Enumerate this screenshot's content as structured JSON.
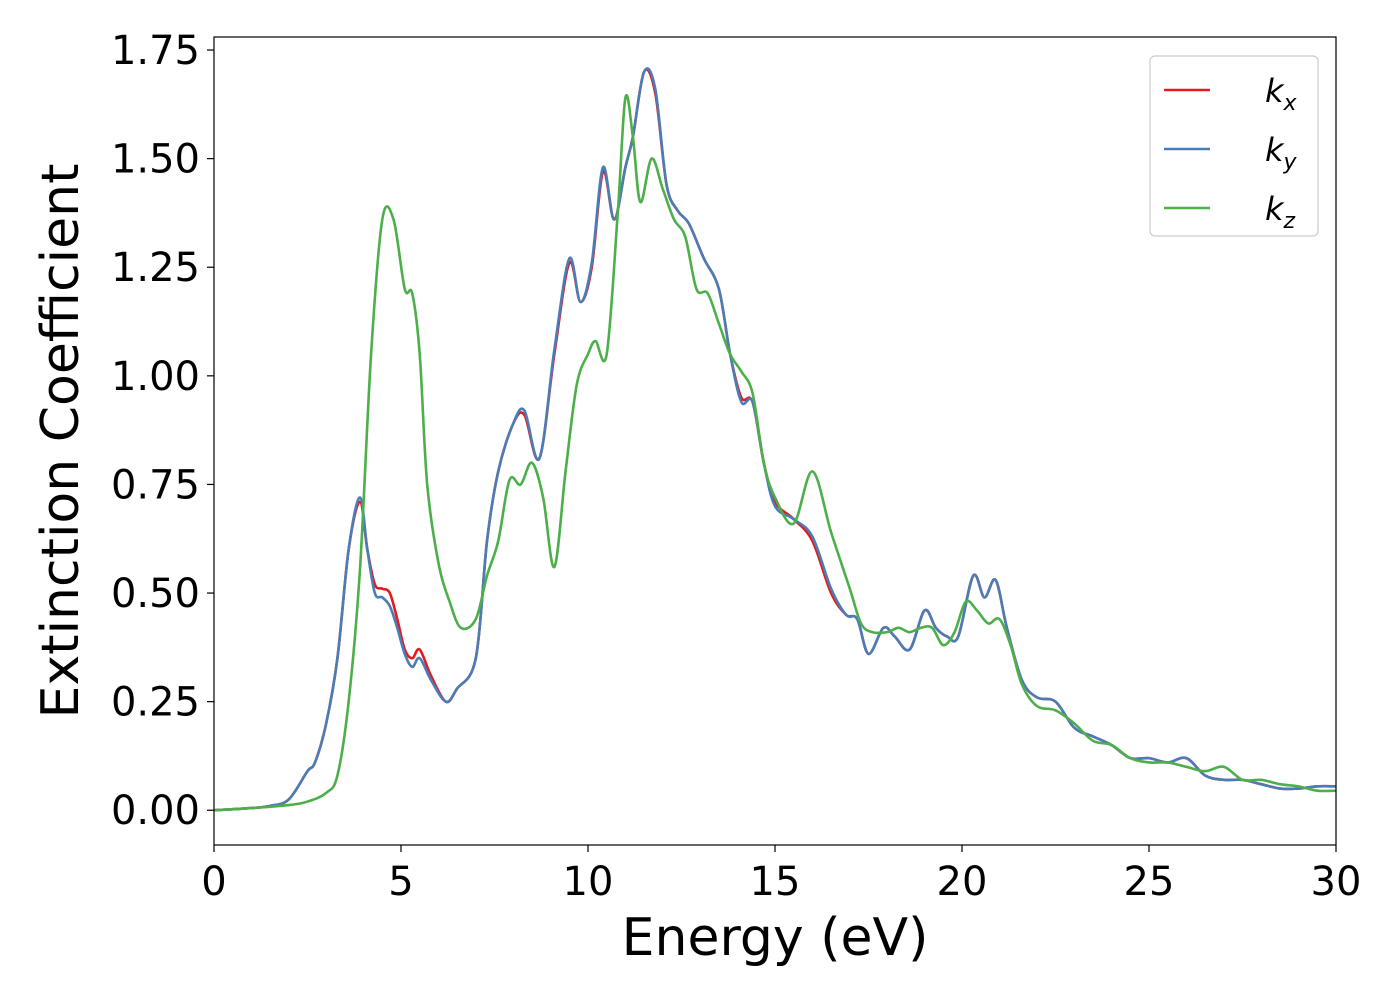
{
  "chart_data": {
    "type": "line",
    "title": "",
    "xlabel": "Energy (eV)",
    "ylabel": "Extinction Coefficient",
    "xlim": [
      0,
      30
    ],
    "ylim": [
      -0.08,
      1.78
    ],
    "xticks": [
      0,
      5,
      10,
      15,
      20,
      25,
      30
    ],
    "xtick_labels": [
      "0",
      "5",
      "10",
      "15",
      "20",
      "25",
      "30"
    ],
    "yticks": [
      0,
      0.25,
      0.5,
      0.75,
      1.0,
      1.25,
      1.5,
      1.75
    ],
    "ytick_labels": [
      "0.00",
      "0.25",
      "0.50",
      "0.75",
      "1.00",
      "1.25",
      "1.50",
      "1.75"
    ],
    "grid": false,
    "legend_position": "top-right",
    "series": [
      {
        "name": "k_x",
        "label_main": "k",
        "label_sub": "x",
        "color": "#e41a1c",
        "x": [
          0,
          1,
          1.5,
          2,
          2.5,
          2.7,
          3,
          3.3,
          3.6,
          3.9,
          4.1,
          4.3,
          4.5,
          4.7,
          4.9,
          5.1,
          5.3,
          5.5,
          5.8,
          6.2,
          6.5,
          7,
          7.3,
          7.6,
          8,
          8.3,
          8.7,
          9.1,
          9.5,
          9.8,
          10.1,
          10.4,
          10.7,
          11,
          11.2,
          11.5,
          11.8,
          12.1,
          12.4,
          12.7,
          13.1,
          13.5,
          13.8,
          14.1,
          14.4,
          14.7,
          15,
          15.5,
          16,
          16.5,
          16.9,
          17.2,
          17.5,
          17.9,
          18.2,
          18.6,
          19,
          19.3,
          19.6,
          19.9,
          20.3,
          20.6,
          20.9,
          21.2,
          21.6,
          22,
          22.5,
          23,
          23.5,
          24,
          24.5,
          25,
          25.5,
          26,
          26.5,
          27,
          27.5,
          28,
          28.5,
          29,
          29.5,
          30
        ],
        "y": [
          0,
          0.005,
          0.01,
          0.025,
          0.09,
          0.11,
          0.2,
          0.35,
          0.6,
          0.71,
          0.6,
          0.52,
          0.51,
          0.5,
          0.44,
          0.37,
          0.35,
          0.37,
          0.31,
          0.25,
          0.28,
          0.35,
          0.62,
          0.78,
          0.89,
          0.91,
          0.81,
          1.05,
          1.26,
          1.17,
          1.25,
          1.47,
          1.36,
          1.48,
          1.55,
          1.7,
          1.65,
          1.44,
          1.38,
          1.35,
          1.27,
          1.2,
          1.05,
          0.95,
          0.94,
          0.8,
          0.71,
          0.67,
          0.62,
          0.5,
          0.45,
          0.44,
          0.36,
          0.42,
          0.4,
          0.37,
          0.46,
          0.42,
          0.4,
          0.4,
          0.54,
          0.49,
          0.53,
          0.42,
          0.3,
          0.26,
          0.25,
          0.19,
          0.17,
          0.15,
          0.12,
          0.12,
          0.11,
          0.12,
          0.08,
          0.07,
          0.07,
          0.06,
          0.05,
          0.05,
          0.055,
          0.055
        ]
      },
      {
        "name": "k_y",
        "label_main": "k",
        "label_sub": "y",
        "color": "#4a7db7",
        "x": [
          0,
          1,
          1.5,
          2,
          2.5,
          2.7,
          3,
          3.3,
          3.6,
          3.9,
          4.1,
          4.3,
          4.5,
          4.7,
          4.9,
          5.1,
          5.3,
          5.5,
          5.8,
          6.2,
          6.5,
          7,
          7.3,
          7.6,
          8,
          8.3,
          8.7,
          9.1,
          9.5,
          9.8,
          10.1,
          10.4,
          10.7,
          11,
          11.2,
          11.5,
          11.8,
          12.1,
          12.4,
          12.7,
          13.1,
          13.5,
          13.8,
          14.1,
          14.4,
          14.7,
          15,
          15.5,
          16,
          16.5,
          16.9,
          17.2,
          17.5,
          17.9,
          18.2,
          18.6,
          19,
          19.3,
          19.6,
          19.9,
          20.3,
          20.6,
          20.9,
          21.2,
          21.6,
          22,
          22.5,
          23,
          23.5,
          24,
          24.5,
          25,
          25.5,
          26,
          26.5,
          27,
          27.5,
          28,
          28.5,
          29,
          29.5,
          30
        ],
        "y": [
          0,
          0.005,
          0.01,
          0.025,
          0.09,
          0.11,
          0.2,
          0.35,
          0.6,
          0.72,
          0.6,
          0.5,
          0.49,
          0.47,
          0.42,
          0.36,
          0.33,
          0.35,
          0.3,
          0.25,
          0.28,
          0.35,
          0.62,
          0.78,
          0.89,
          0.92,
          0.81,
          1.06,
          1.27,
          1.17,
          1.26,
          1.48,
          1.36,
          1.48,
          1.55,
          1.7,
          1.66,
          1.44,
          1.38,
          1.35,
          1.27,
          1.2,
          1.05,
          0.94,
          0.94,
          0.8,
          0.7,
          0.67,
          0.63,
          0.51,
          0.45,
          0.44,
          0.36,
          0.42,
          0.4,
          0.37,
          0.46,
          0.42,
          0.4,
          0.4,
          0.54,
          0.49,
          0.53,
          0.42,
          0.3,
          0.26,
          0.25,
          0.19,
          0.17,
          0.15,
          0.12,
          0.12,
          0.11,
          0.12,
          0.08,
          0.07,
          0.07,
          0.06,
          0.05,
          0.05,
          0.055,
          0.055
        ]
      },
      {
        "name": "k_z",
        "label_main": "k",
        "label_sub": "z",
        "color": "#4daf4a",
        "x": [
          0,
          1,
          2,
          2.5,
          3,
          3.3,
          3.6,
          3.9,
          4.2,
          4.5,
          4.8,
          5.1,
          5.3,
          5.5,
          5.7,
          6,
          6.3,
          6.6,
          7,
          7.3,
          7.6,
          7.9,
          8.2,
          8.5,
          8.8,
          9.1,
          9.4,
          9.7,
          10,
          10.2,
          10.5,
          10.8,
          11,
          11.2,
          11.4,
          11.7,
          12,
          12.3,
          12.6,
          12.9,
          13.2,
          13.5,
          13.8,
          14.1,
          14.4,
          14.7,
          15,
          15.5,
          16,
          16.5,
          17,
          17.3,
          17.6,
          18,
          18.3,
          18.6,
          18.9,
          19.2,
          19.5,
          19.8,
          20.1,
          20.4,
          20.7,
          21,
          21.3,
          21.6,
          22,
          22.5,
          23,
          23.5,
          24,
          24.5,
          25,
          25.5,
          26,
          26.5,
          27,
          27.5,
          28,
          28.5,
          29,
          29.5,
          30
        ],
        "y": [
          0,
          0.005,
          0.012,
          0.02,
          0.04,
          0.08,
          0.25,
          0.55,
          1.05,
          1.36,
          1.36,
          1.2,
          1.19,
          1.05,
          0.75,
          0.57,
          0.48,
          0.42,
          0.44,
          0.54,
          0.62,
          0.76,
          0.75,
          0.8,
          0.72,
          0.56,
          0.78,
          0.98,
          1.05,
          1.08,
          1.05,
          1.38,
          1.64,
          1.55,
          1.4,
          1.5,
          1.43,
          1.36,
          1.32,
          1.2,
          1.19,
          1.12,
          1.05,
          1.01,
          0.96,
          0.8,
          0.72,
          0.66,
          0.78,
          0.64,
          0.51,
          0.43,
          0.41,
          0.41,
          0.42,
          0.41,
          0.42,
          0.42,
          0.38,
          0.41,
          0.48,
          0.46,
          0.43,
          0.44,
          0.38,
          0.29,
          0.24,
          0.23,
          0.2,
          0.16,
          0.15,
          0.12,
          0.11,
          0.11,
          0.1,
          0.09,
          0.1,
          0.07,
          0.07,
          0.06,
          0.055,
          0.045,
          0.045
        ]
      }
    ]
  }
}
